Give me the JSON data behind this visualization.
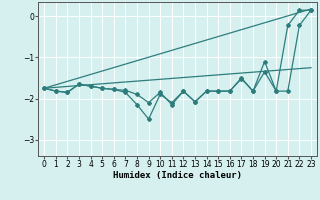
{
  "xlabel": "Humidex (Indice chaleur)",
  "background_color": "#d6f0f0",
  "grid_color": "#ffffff",
  "line_color": "#2e7d7d",
  "xlim": [
    -0.5,
    23.5
  ],
  "ylim": [
    -3.4,
    0.35
  ],
  "yticks": [
    0,
    -1,
    -2,
    -3
  ],
  "xticks": [
    0,
    1,
    2,
    3,
    4,
    5,
    6,
    7,
    8,
    9,
    10,
    11,
    12,
    13,
    14,
    15,
    16,
    17,
    18,
    19,
    20,
    21,
    22,
    23
  ],
  "upper_line_y": [
    -1.75,
    0.18
  ],
  "lower_line_y": [
    -1.75,
    -1.25
  ],
  "zigzag1_x": [
    0,
    1,
    2,
    3,
    4,
    5,
    6,
    7,
    8,
    9,
    10,
    11,
    12,
    13,
    14,
    15,
    16,
    17,
    18,
    19,
    20,
    21,
    22,
    23
  ],
  "zigzag1_y": [
    -1.75,
    -1.82,
    -1.85,
    -1.65,
    -1.7,
    -1.75,
    -1.78,
    -1.8,
    -1.9,
    -2.1,
    -1.85,
    -2.15,
    -1.82,
    -2.08,
    -1.82,
    -1.82,
    -1.82,
    -1.5,
    -1.82,
    -1.1,
    -1.82,
    -0.22,
    0.15,
    0.15
  ],
  "zigzag2_x": [
    0,
    1,
    2,
    3,
    4,
    5,
    6,
    7,
    8,
    9,
    10,
    11,
    12,
    13,
    14,
    15,
    16,
    17,
    18,
    19,
    20,
    21,
    22,
    23
  ],
  "zigzag2_y": [
    -1.75,
    -1.82,
    -1.85,
    -1.65,
    -1.7,
    -1.75,
    -1.78,
    -1.85,
    -2.15,
    -2.5,
    -1.9,
    -2.1,
    -1.82,
    -2.08,
    -1.82,
    -1.82,
    -1.82,
    -1.52,
    -1.82,
    -1.35,
    -1.82,
    -1.82,
    -0.22,
    0.15
  ]
}
